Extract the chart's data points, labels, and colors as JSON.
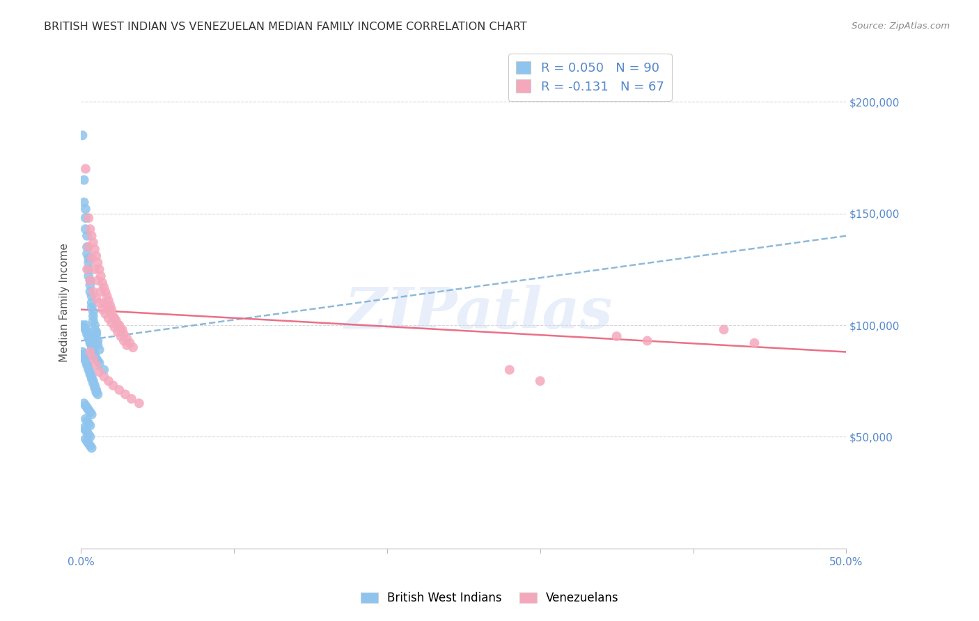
{
  "title": "BRITISH WEST INDIAN VS VENEZUELAN MEDIAN FAMILY INCOME CORRELATION CHART",
  "source": "Source: ZipAtlas.com",
  "ylabel": "Median Family Income",
  "ytick_labels": [
    "$50,000",
    "$100,000",
    "$150,000",
    "$200,000"
  ],
  "ytick_values": [
    50000,
    100000,
    150000,
    200000
  ],
  "xlim": [
    0.0,
    0.5
  ],
  "ylim": [
    0,
    220000
  ],
  "watermark": "ZIPatlas",
  "blue_color": "#8EC4ED",
  "pink_color": "#F5A8BC",
  "blue_line_color": "#7AADD4",
  "pink_line_color": "#E8607A",
  "axis_label_color": "#5588CC",
  "title_color": "#333333",
  "grid_color": "#CCCCCC",
  "background_color": "#FFFFFF",
  "blue_trend": [
    0.0,
    0.5,
    93000,
    140000
  ],
  "pink_trend": [
    0.0,
    0.5,
    107000,
    88000
  ],
  "bwi_x": [
    0.001,
    0.002,
    0.002,
    0.003,
    0.003,
    0.003,
    0.004,
    0.004,
    0.004,
    0.005,
    0.005,
    0.005,
    0.005,
    0.006,
    0.006,
    0.006,
    0.007,
    0.007,
    0.007,
    0.008,
    0.008,
    0.008,
    0.009,
    0.009,
    0.01,
    0.01,
    0.01,
    0.011,
    0.011,
    0.012,
    0.001,
    0.002,
    0.002,
    0.003,
    0.003,
    0.004,
    0.004,
    0.005,
    0.005,
    0.006,
    0.006,
    0.007,
    0.007,
    0.008,
    0.008,
    0.009,
    0.009,
    0.01,
    0.01,
    0.011,
    0.001,
    0.002,
    0.003,
    0.003,
    0.004,
    0.004,
    0.005,
    0.005,
    0.006,
    0.006,
    0.007,
    0.007,
    0.008,
    0.008,
    0.009,
    0.009,
    0.01,
    0.011,
    0.012,
    0.015,
    0.002,
    0.003,
    0.004,
    0.005,
    0.006,
    0.007,
    0.003,
    0.004,
    0.005,
    0.006,
    0.002,
    0.003,
    0.004,
    0.005,
    0.006,
    0.003,
    0.004,
    0.005,
    0.006,
    0.007
  ],
  "bwi_y": [
    185000,
    165000,
    155000,
    152000,
    148000,
    143000,
    140000,
    135000,
    132000,
    130000,
    128000,
    125000,
    122000,
    120000,
    118000,
    115000,
    113000,
    110000,
    108000,
    106000,
    104000,
    102000,
    100000,
    98000,
    97000,
    96000,
    94000,
    93000,
    91000,
    89000,
    88000,
    87000,
    86000,
    85000,
    84000,
    83000,
    82000,
    81000,
    80000,
    79000,
    78000,
    77000,
    76000,
    75000,
    74000,
    73000,
    72000,
    71000,
    70000,
    69000,
    100000,
    99000,
    100000,
    98000,
    97000,
    96000,
    95000,
    94000,
    93000,
    92000,
    91000,
    90000,
    89000,
    88000,
    87000,
    86000,
    85000,
    84000,
    83000,
    80000,
    65000,
    64000,
    63000,
    62000,
    61000,
    60000,
    58000,
    57000,
    56000,
    55000,
    54000,
    53000,
    52000,
    51000,
    50000,
    49000,
    48000,
    47000,
    46000,
    45000
  ],
  "ven_x": [
    0.003,
    0.005,
    0.006,
    0.007,
    0.008,
    0.009,
    0.01,
    0.011,
    0.012,
    0.013,
    0.014,
    0.015,
    0.016,
    0.017,
    0.018,
    0.019,
    0.02,
    0.022,
    0.024,
    0.026,
    0.028,
    0.03,
    0.032,
    0.034,
    0.005,
    0.007,
    0.009,
    0.011,
    0.013,
    0.015,
    0.017,
    0.019,
    0.021,
    0.023,
    0.025,
    0.027,
    0.004,
    0.006,
    0.008,
    0.01,
    0.012,
    0.014,
    0.016,
    0.018,
    0.02,
    0.022,
    0.024,
    0.026,
    0.028,
    0.03,
    0.006,
    0.008,
    0.01,
    0.012,
    0.015,
    0.018,
    0.021,
    0.025,
    0.029,
    0.033,
    0.038,
    0.35,
    0.37,
    0.28,
    0.3,
    0.42,
    0.44
  ],
  "ven_y": [
    170000,
    148000,
    143000,
    140000,
    137000,
    134000,
    131000,
    128000,
    125000,
    122000,
    119000,
    117000,
    115000,
    113000,
    111000,
    109000,
    107000,
    103000,
    100000,
    98000,
    96000,
    94000,
    92000,
    90000,
    135000,
    130000,
    125000,
    120000,
    115000,
    110000,
    108000,
    106000,
    104000,
    102000,
    100000,
    98000,
    125000,
    120000,
    115000,
    112000,
    110000,
    107000,
    105000,
    103000,
    101000,
    99000,
    97000,
    95000,
    93000,
    91000,
    88000,
    85000,
    82000,
    79000,
    77000,
    75000,
    73000,
    71000,
    69000,
    67000,
    65000,
    95000,
    93000,
    80000,
    75000,
    98000,
    92000
  ]
}
